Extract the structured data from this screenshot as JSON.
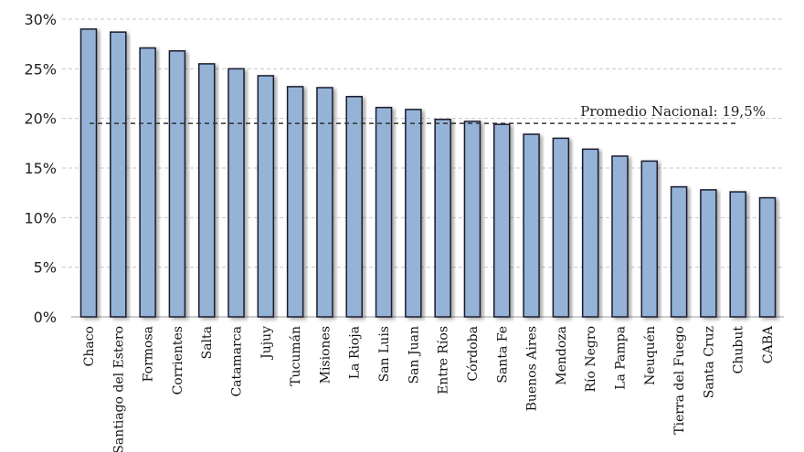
{
  "chart_data": {
    "type": "bar",
    "title": "",
    "xlabel": "",
    "ylabel": "",
    "ylim": [
      0,
      30
    ],
    "yticks": [
      "0%",
      "5%",
      "10%",
      "15%",
      "20%",
      "25%",
      "30%"
    ],
    "ytick_values": [
      0,
      5,
      10,
      15,
      20,
      25,
      30
    ],
    "grid": true,
    "categories": [
      "Chaco",
      "Santiago del Estero",
      "Formosa",
      "Corrientes",
      "Salta",
      "Catamarca",
      "Jujuy",
      "Tucumán",
      "Misiones",
      "La Rioja",
      "San Luis",
      "San Juan",
      "Entre Ríos",
      "Córdoba",
      "Santa Fe",
      "Buenos Aires",
      "Mendoza",
      "Río Negro",
      "La Pampa",
      "Neuquén",
      "Tierra del Fuego",
      "Santa Cruz",
      "Chubut",
      "CABA"
    ],
    "values": [
      29.0,
      28.7,
      27.1,
      26.8,
      25.5,
      25.0,
      24.3,
      23.2,
      23.1,
      22.2,
      21.1,
      20.9,
      19.9,
      19.7,
      19.4,
      18.4,
      18.0,
      16.9,
      16.2,
      15.7,
      13.1,
      12.8,
      12.6,
      12.0
    ],
    "reference_line": {
      "value": 19.5,
      "label": "Promedio Nacional: 19,5%",
      "style": "dashed"
    },
    "colors": {
      "bar": "#95b3d7",
      "bar_edge": "#1a1a2e",
      "grid": "#c8c8c8",
      "reference": "#333333"
    }
  }
}
